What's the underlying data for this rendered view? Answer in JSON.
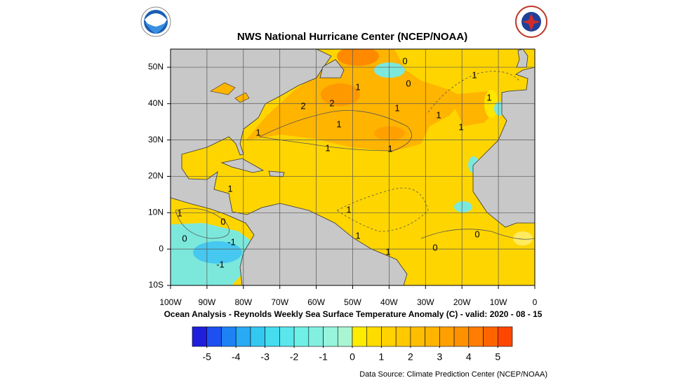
{
  "header": {
    "title": "NWS National Hurricane Center (NCEP/NOAA)"
  },
  "map": {
    "xlim": [
      -100,
      0
    ],
    "ylim": [
      -10,
      55
    ],
    "xticks": [
      {
        "value": -100,
        "label": "100W"
      },
      {
        "value": -90,
        "label": "90W"
      },
      {
        "value": -80,
        "label": "80W"
      },
      {
        "value": -70,
        "label": "70W"
      },
      {
        "value": -60,
        "label": "60W"
      },
      {
        "value": -50,
        "label": "50W"
      },
      {
        "value": -40,
        "label": "40W"
      },
      {
        "value": -30,
        "label": "30W"
      },
      {
        "value": -20,
        "label": "20W"
      },
      {
        "value": -10,
        "label": "10W"
      },
      0
    ],
    "yticks": [
      {
        "value": -10,
        "label": "10S"
      },
      0,
      {
        "value": 10,
        "label": "10N"
      },
      {
        "value": 20,
        "label": "20N"
      },
      {
        "value": 30,
        "label": "30N"
      },
      {
        "value": 40,
        "label": "40N"
      },
      {
        "value": 50,
        "label": "50N"
      }
    ],
    "contour_labels": [
      "0",
      "0",
      "1",
      "1",
      "1",
      "2",
      "2",
      "1",
      "1",
      "1",
      "1",
      "1",
      "1",
      "1",
      "1",
      "0",
      "0",
      "-1",
      "-1",
      "1",
      "1",
      "1",
      "0",
      "0",
      "1"
    ]
  },
  "caption": "Ocean Analysis - Reynolds Weekly Sea Surface Temperature Anomaly (C) - valid: 2020 - 08 - 15",
  "colorbar": {
    "ticks": [
      -5,
      -4,
      -3,
      -2,
      -1,
      0,
      1,
      2,
      3,
      4,
      5
    ],
    "colors": [
      "#1e1edc",
      "#1e50f0",
      "#1e82f5",
      "#28aaf5",
      "#32c8f0",
      "#46dcf0",
      "#5ae6eb",
      "#6ef0e6",
      "#82f0e1",
      "#96f5dc",
      "#aaf5d2",
      "#ffeb00",
      "#ffdc00",
      "#ffd200",
      "#ffc800",
      "#ffbe00",
      "#ffb400",
      "#ffa000",
      "#ff9100",
      "#ff7d00",
      "#ff6400",
      "#ff4600"
    ]
  },
  "source": "Data Source: Climate Prediction Center (NCEP/NOAA)"
}
